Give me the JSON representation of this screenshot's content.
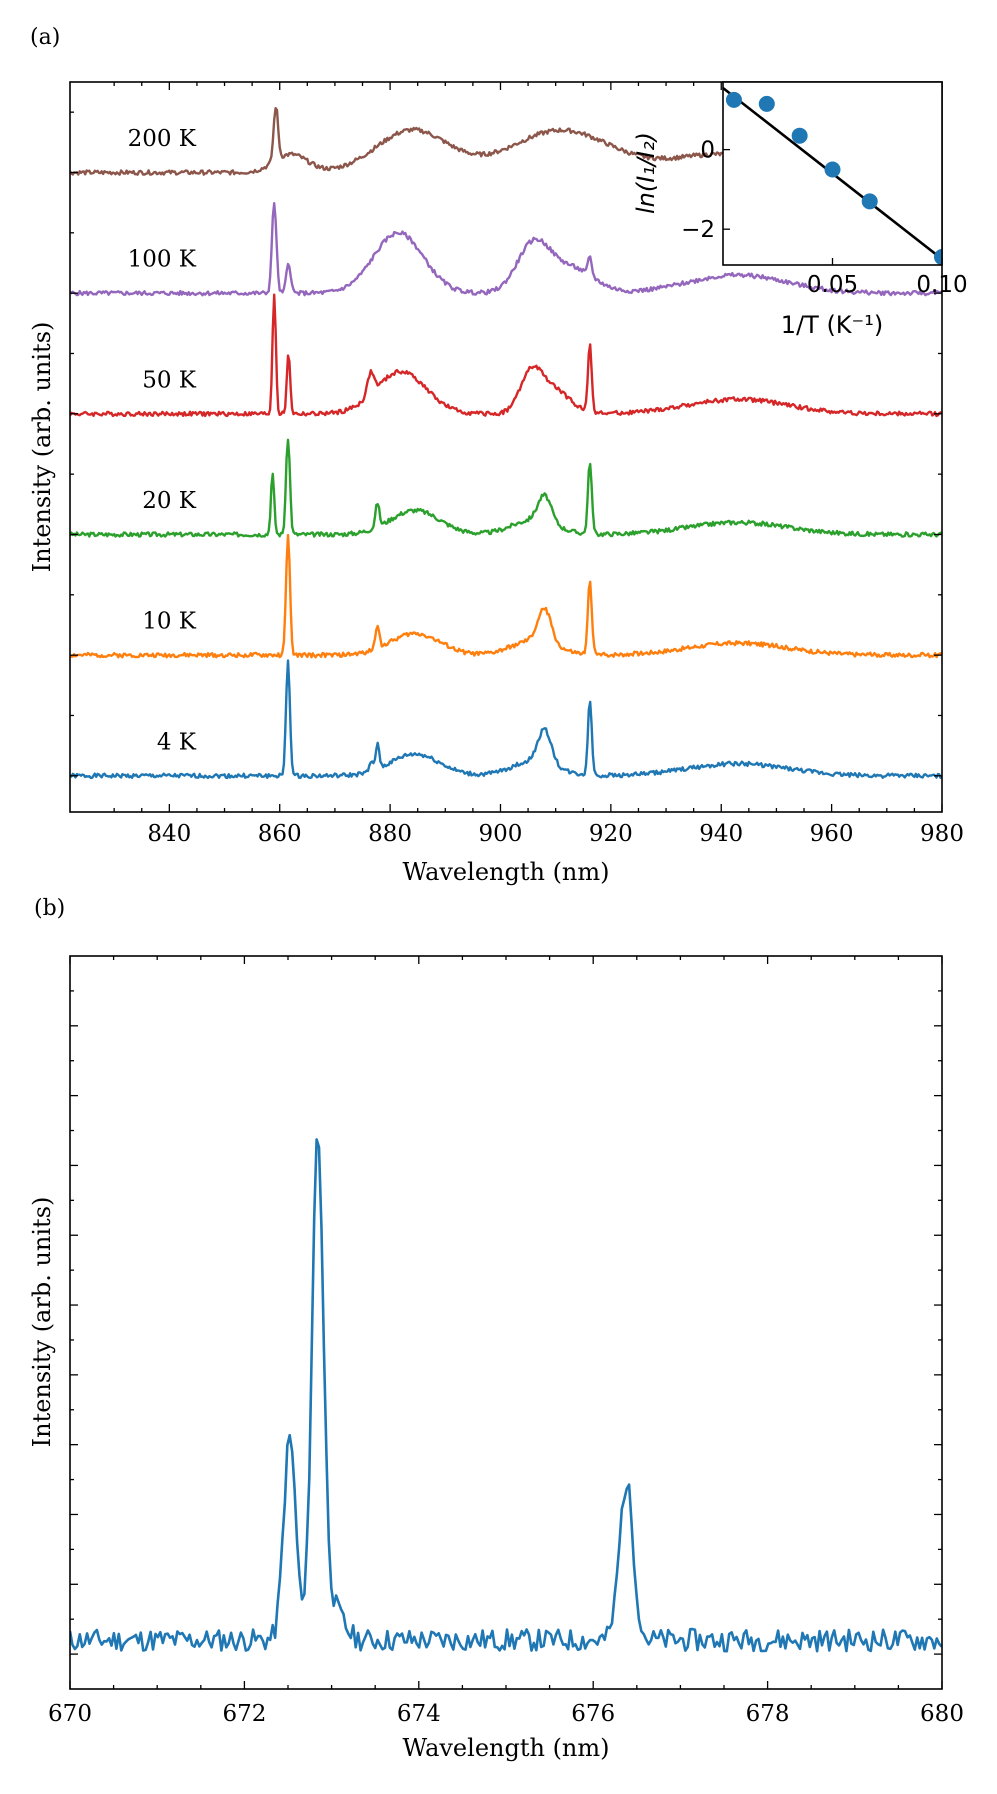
{
  "panel_a_label": "(a)",
  "panel_b_label": "(b)",
  "chart_data": [
    {
      "type": "line",
      "panel": "(a)",
      "xlabel": "Wavelength (nm)",
      "ylabel": "Intensity (arb. units)",
      "xlim": [
        822,
        980
      ],
      "ylim": [
        0,
        6.05
      ],
      "xticks": [
        840,
        860,
        880,
        900,
        920,
        940,
        960,
        980
      ],
      "peaks_common": [
        [
          877.7,
          0.35,
          0.4
        ],
        [
          884.5,
          0.25,
          4.5
        ],
        [
          908.0,
          0.3,
          2.5
        ],
        [
          943,
          0.12,
          9
        ],
        [
          916.2,
          0.6,
          0.35
        ]
      ],
      "series": [
        {
          "name": "4 K",
          "label": "4 K",
          "color": "#1f77b4",
          "offset": 0.3,
          "seed": 1,
          "peaks": [
            [
              861.5,
              0.95,
              0.35
            ],
            [
              877.7,
              0.2,
              0.35
            ],
            [
              876.6,
              0.08,
              0.3
            ],
            [
              884.5,
              0.18,
              4.5
            ],
            [
              908.0,
              0.28,
              1.2
            ],
            [
              906,
              0.12,
              4
            ],
            [
              916.2,
              0.62,
              0.35
            ],
            [
              943,
              0.1,
              9
            ]
          ]
        },
        {
          "name": "10 K",
          "label": "10 K",
          "color": "#ff7f0e",
          "offset": 1.3,
          "seed": 2,
          "peaks": [
            [
              861.5,
              1.0,
              0.35
            ],
            [
              877.7,
              0.2,
              0.35
            ],
            [
              884.5,
              0.18,
              4.5
            ],
            [
              908.0,
              0.28,
              1.2
            ],
            [
              906,
              0.12,
              4
            ],
            [
              916.2,
              0.62,
              0.35
            ],
            [
              943,
              0.1,
              9
            ]
          ]
        },
        {
          "name": "20 K",
          "label": "20 K",
          "color": "#2ca02c",
          "offset": 2.3,
          "seed": 3,
          "peaks": [
            [
              858.7,
              0.5,
              0.3
            ],
            [
              861.5,
              0.8,
              0.35
            ],
            [
              877.7,
              0.2,
              0.35
            ],
            [
              884.5,
              0.2,
              4.5
            ],
            [
              908.0,
              0.22,
              1.2
            ],
            [
              906,
              0.12,
              4
            ],
            [
              916.2,
              0.6,
              0.35
            ],
            [
              943,
              0.1,
              9
            ]
          ]
        },
        {
          "name": "50 K",
          "label": "50 K",
          "color": "#d62728",
          "offset": 3.3,
          "seed": 4,
          "peaks": [
            [
              859.0,
              1.0,
              0.3
            ],
            [
              861.6,
              0.5,
              0.3
            ],
            [
              876.5,
              0.18,
              0.6
            ],
            [
              882.0,
              0.35,
              4.5
            ],
            [
              905.5,
              0.3,
              2.0
            ],
            [
              909.5,
              0.2,
              3
            ],
            [
              916.2,
              0.55,
              0.35
            ],
            [
              943,
              0.12,
              9
            ]
          ]
        },
        {
          "name": "100 K",
          "label": "100 K",
          "color": "#9467bd",
          "offset": 4.3,
          "seed": 5,
          "peaks": [
            [
              859.0,
              0.75,
              0.4
            ],
            [
              861.6,
              0.25,
              0.4
            ],
            [
              881.5,
              0.5,
              4.5
            ],
            [
              906.0,
              0.4,
              3.0
            ],
            [
              913,
              0.2,
              4
            ],
            [
              916.2,
              0.15,
              0.35
            ],
            [
              943,
              0.15,
              9
            ]
          ]
        },
        {
          "name": "200 K",
          "label": "200 K",
          "color": "#8c564b",
          "offset": 5.3,
          "seed": 6,
          "peaks": [
            [
              859.3,
              0.45,
              0.4
            ],
            [
              862,
              0.15,
              3
            ],
            [
              884.0,
              0.35,
              6.5
            ],
            [
              911.0,
              0.35,
              9.0
            ],
            [
              940,
              0.15,
              9
            ]
          ]
        }
      ],
      "inset": {
        "xlabel": "1/T (K⁻¹)",
        "ylabel": "ln(I₁/I₂)",
        "xlim": [
          0.0,
          0.1
        ],
        "ylim": [
          -2.9,
          1.7
        ],
        "xticks": [
          0.05,
          0.1
        ],
        "xtick_labels": [
          "0.05",
          "0.10"
        ],
        "yticks": [
          0,
          -2
        ],
        "ytick_labels": [
          "0",
          "−2"
        ],
        "points": [
          {
            "x": 0.005,
            "y": 1.25
          },
          {
            "x": 0.02,
            "y": 1.15
          },
          {
            "x": 0.035,
            "y": 0.35
          },
          {
            "x": 0.05,
            "y": -0.5
          },
          {
            "x": 0.067,
            "y": -1.3
          },
          {
            "x": 0.1,
            "y": -2.7
          }
        ],
        "fit": {
          "x": [
            0.0,
            0.1
          ],
          "y": [
            1.55,
            -2.75
          ]
        }
      }
    },
    {
      "type": "line",
      "panel": "(b)",
      "xlabel": "Wavelength (nm)",
      "ylabel": "Intensity (arb. units)",
      "xlim": [
        670,
        680
      ],
      "ylim": [
        -0.5,
        10.0
      ],
      "xticks": [
        670,
        672,
        674,
        676,
        678,
        680
      ],
      "color": "#1f77b4",
      "seed": 11,
      "baseline": 0.2,
      "peaks": [
        [
          672.52,
          2.9,
          0.07
        ],
        [
          672.84,
          7.1,
          0.065
        ],
        [
          673.0,
          0.5,
          0.12
        ],
        [
          676.38,
          2.25,
          0.08
        ]
      ]
    }
  ]
}
